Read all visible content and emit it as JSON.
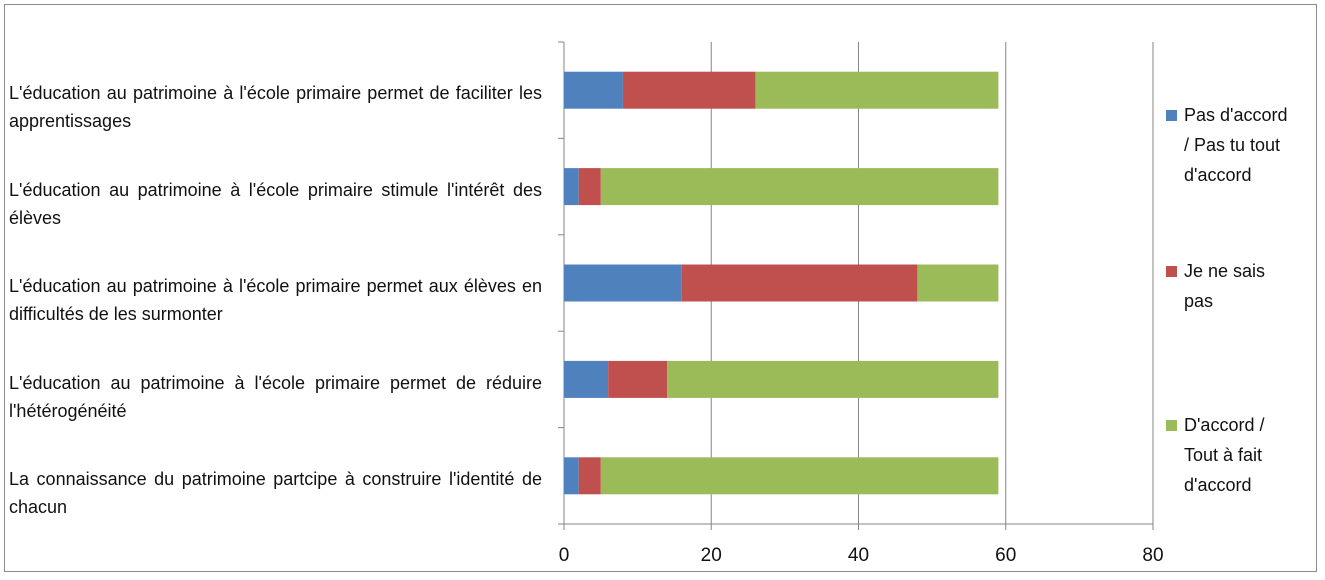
{
  "chart_data": {
    "type": "bar",
    "orientation": "horizontal",
    "stacked": true,
    "categories": [
      "L'éducation au patrimoine à l'école primaire permet de faciliter les apprentissages",
      "L'éducation au patrimoine à l'école primaire stimule l'intérêt des élèves",
      "L'éducation au patrimoine à l'école primaire permet aux élèves en difficultés de les surmonter",
      "L'éducation au patrimoine à l'école primaire permet de réduire l'hétérogénéité",
      "La connaissance du patrimoine partcipe à construire l'identité de chacun"
    ],
    "series": [
      {
        "name": "Pas d'accord / Pas tu tout d'accord",
        "color": "#4f81bd",
        "values": [
          8,
          2,
          16,
          6,
          2
        ]
      },
      {
        "name": "Je ne sais pas",
        "color": "#c0504d",
        "values": [
          18,
          3,
          32,
          8,
          3
        ]
      },
      {
        "name": "D'accord / Tout à fait d'accord",
        "color": "#9bbb59",
        "values": [
          33,
          54,
          11,
          45,
          54
        ]
      }
    ],
    "xlim": [
      0,
      80
    ],
    "xticks": [
      "0",
      "20",
      "40",
      "60",
      "80"
    ],
    "grid": true,
    "legend_position": "right"
  }
}
